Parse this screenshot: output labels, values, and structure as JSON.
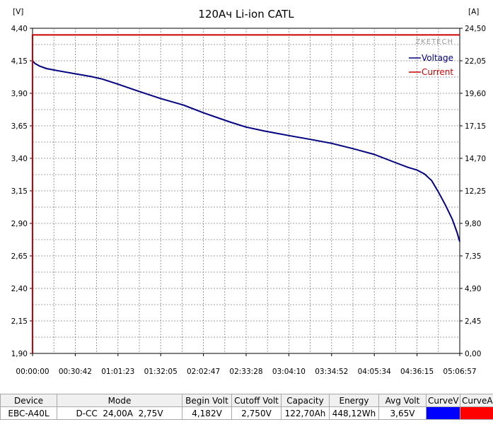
{
  "chart_data": {
    "type": "line",
    "title": "120Ач Li-ion CATL",
    "watermark": "ZKETECH",
    "y_left_unit": "[V]",
    "y_right_unit": "[A]",
    "y_left_ticks": [
      "4,40",
      "4,15",
      "3,90",
      "3,65",
      "3,40",
      "3,15",
      "2,90",
      "2,65",
      "2,40",
      "2,15",
      "1,90"
    ],
    "y_right_ticks": [
      "24,50",
      "22,05",
      "19,60",
      "17,15",
      "14,70",
      "12,25",
      "9,80",
      "7,35",
      "4,90",
      "2,45",
      "0,00"
    ],
    "x_ticks": [
      "00:00:00",
      "00:30:42",
      "01:01:23",
      "01:32:05",
      "02:02:47",
      "02:33:28",
      "03:04:10",
      "03:34:52",
      "04:05:34",
      "04:36:15",
      "05:06:57"
    ],
    "y_left_range": [
      1.9,
      4.4
    ],
    "y_right_range": [
      0,
      24.5
    ],
    "x_range_seconds": [
      0,
      18417
    ],
    "grid": true,
    "legend_position": "top-right",
    "series": [
      {
        "name": "Voltage",
        "axis": "left",
        "color": "#000080",
        "x_seconds": [
          0,
          100,
          300,
          600,
          900,
          1200,
          1842,
          2500,
          3000,
          3684,
          4500,
          5526,
          6500,
          7368,
          8500,
          9210,
          10000,
          11052,
          12000,
          12894,
          13800,
          14736,
          15600,
          16200,
          16578,
          16900,
          17200,
          17500,
          17800,
          18100,
          18300,
          18417
        ],
        "values": [
          4.15,
          4.13,
          4.11,
          4.09,
          4.08,
          4.07,
          4.05,
          4.03,
          4.01,
          3.97,
          3.92,
          3.86,
          3.81,
          3.75,
          3.68,
          3.64,
          3.61,
          3.575,
          3.545,
          3.515,
          3.475,
          3.43,
          3.37,
          3.33,
          3.31,
          3.28,
          3.23,
          3.14,
          3.04,
          2.93,
          2.83,
          2.76
        ]
      },
      {
        "name": "Current",
        "axis": "right",
        "color": "#cc0000",
        "x_seconds": [
          0,
          0,
          18417
        ],
        "values": [
          0,
          24.0,
          24.0
        ]
      }
    ]
  },
  "table": {
    "headers": [
      "Device",
      "Mode",
      "Begin Volt",
      "Cutoff Volt",
      "Capacity",
      "Energy",
      "Avg Volt",
      "CurveV",
      "CurveA"
    ],
    "row": [
      "EBC-A40L",
      "D-CC  24,00A  2,75V",
      "4,182V",
      "2,750V",
      "122,70Ah",
      "448,12Wh",
      "3,65V"
    ],
    "curve_colors": [
      "#0000ff",
      "#ff0000"
    ]
  }
}
